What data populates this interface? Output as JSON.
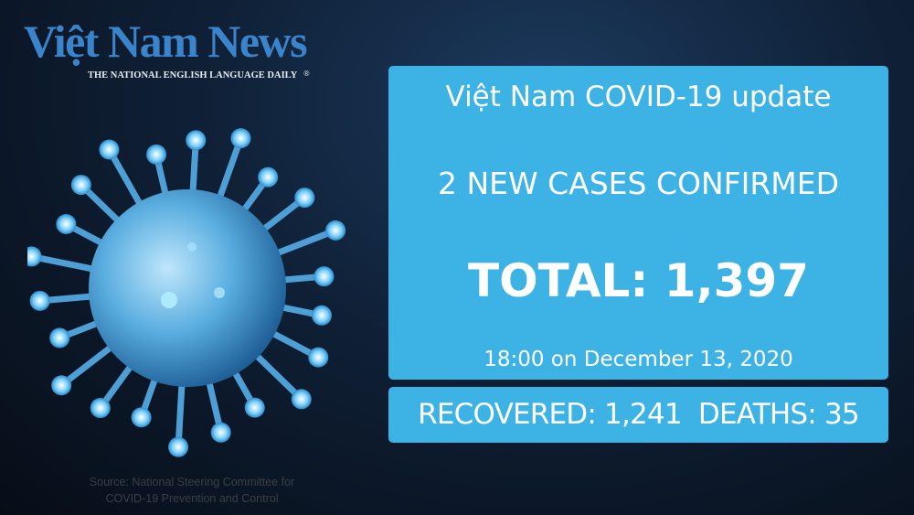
{
  "logo": {
    "name": "Việt Nam News",
    "tagline": "THE NATIONAL ENGLISH LANGUAGE DAILY",
    "registered": "®"
  },
  "illustration": {
    "icon": "coronavirus-icon",
    "color": "#6fc3f0"
  },
  "panel": {
    "title": "Việt Nam COVID-19 update",
    "new_cases": "2 NEW CASES CONFIRMED",
    "total": "TOTAL: 1,397",
    "timestamp": "18:00 on December 13, 2020",
    "color": "#3db2e4"
  },
  "stats": {
    "recovered": "RECOVERED: 1,241",
    "deaths": "DEATHS: 35"
  },
  "source": {
    "line1": "Source: National Steering Committee for",
    "line2": "COVID-19 Prevention and Control"
  }
}
